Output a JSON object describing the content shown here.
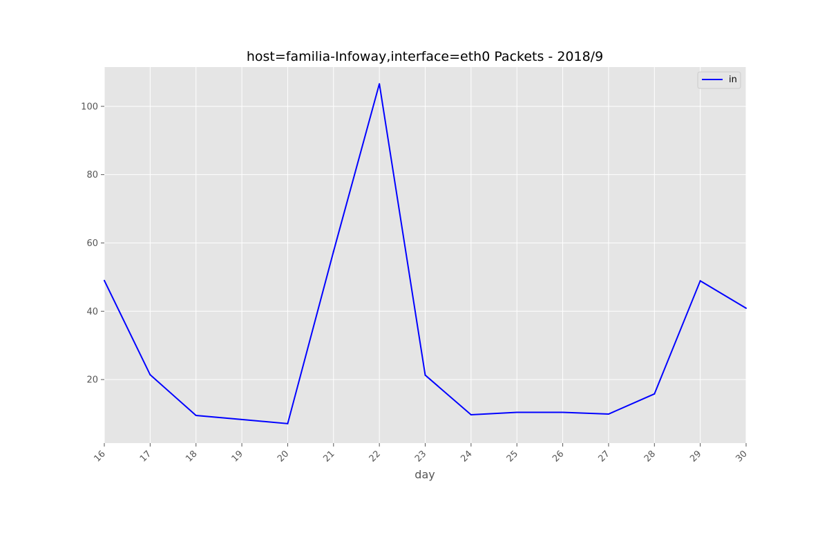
{
  "chart_data": {
    "type": "line",
    "title": "host=familia-Infoway,interface=eth0 Packets - 2018/9",
    "xlabel": "day",
    "ylabel": "",
    "x": [
      "16",
      "17",
      "18",
      "19",
      "20",
      "21",
      "22",
      "23",
      "24",
      "25",
      "26",
      "27",
      "28",
      "29",
      "30"
    ],
    "xlim": [
      16,
      30
    ],
    "ylim": [
      1.4,
      111.5
    ],
    "yticks": [
      "20",
      "40",
      "60",
      "80",
      "100"
    ],
    "grid": true,
    "legend_position": "top-right",
    "series": [
      {
        "name": "in",
        "color": "#0000ff",
        "values": [
          49.0,
          21.4,
          9.5,
          8.3,
          7.1,
          57.5,
          106.6,
          21.3,
          9.7,
          10.4,
          10.4,
          9.9,
          15.8,
          48.9,
          40.9
        ]
      }
    ],
    "colors": {
      "plot_background": "#e5e5e5",
      "grid": "#ffffff",
      "tick_text": "#555555"
    }
  }
}
